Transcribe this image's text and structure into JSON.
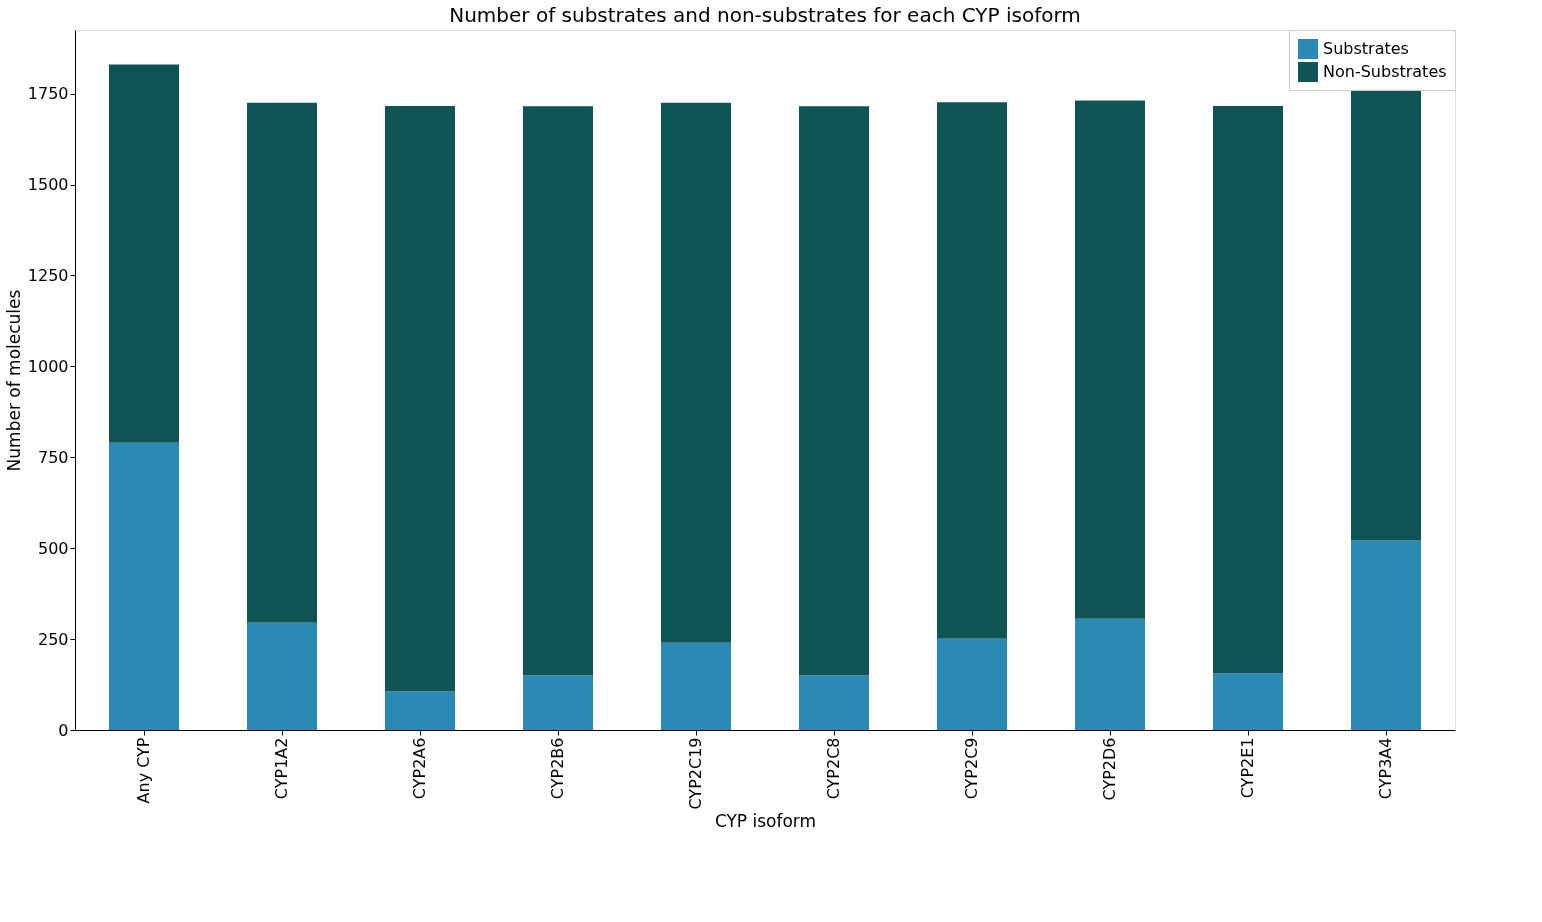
{
  "chart_data": {
    "type": "bar",
    "stacked": true,
    "title": "Number of substrates and non-substrates for each CYP isoform",
    "xlabel": "CYP isoform",
    "ylabel": "Number of molecules",
    "categories": [
      "Any CYP",
      "CYP1A2",
      "CYP2A6",
      "CYP2B6",
      "CYP2C19",
      "CYP2C8",
      "CYP2C9",
      "CYP2D6",
      "CYP2E1",
      "CYP3A4"
    ],
    "series": [
      {
        "name": "Substrates",
        "color": "#2a8ab5",
        "values": [
          790,
          295,
          106,
          150,
          240,
          150,
          251,
          306,
          156,
          521
        ]
      },
      {
        "name": "Non-Substrates",
        "color": "#0f5454",
        "values": [
          1040,
          1430,
          1610,
          1565,
          1485,
          1565,
          1475,
          1425,
          1560,
          1240
        ]
      }
    ],
    "ylim": [
      0,
      1925
    ],
    "yticks": [
      0,
      250,
      500,
      750,
      1000,
      1250,
      1500,
      1750
    ],
    "legend": "top right",
    "grid": false
  }
}
